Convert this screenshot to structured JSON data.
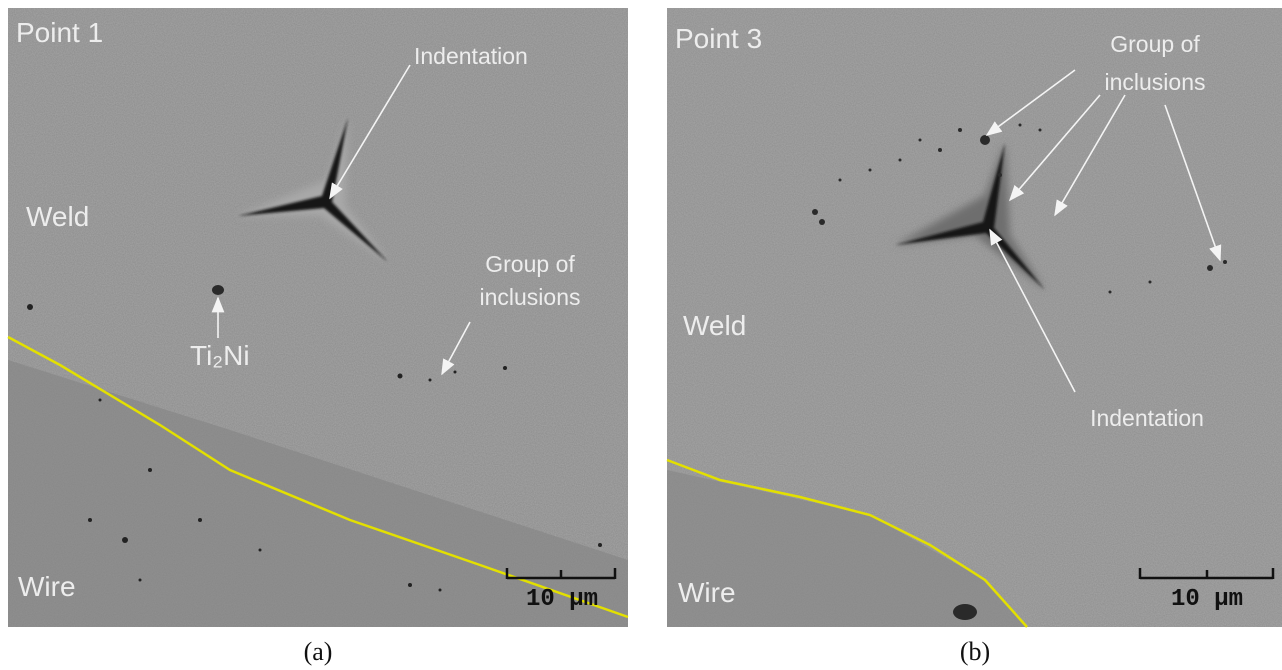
{
  "panels": [
    {
      "point": "Point 1",
      "region_upper": "Weld",
      "region_lower": "Wire",
      "indentation": "Indentation",
      "inclusions": [
        "Group of",
        "inclusions"
      ],
      "phase": "Ti₂Ni",
      "scale": "10 µm",
      "caption": "(a)"
    },
    {
      "point": "Point 3",
      "region_upper": "Weld",
      "region_lower": "Wire",
      "indentation": "Indentation",
      "inclusions": [
        "Group of",
        "inclusions"
      ],
      "scale": "10 µm",
      "caption": "(b)"
    }
  ]
}
